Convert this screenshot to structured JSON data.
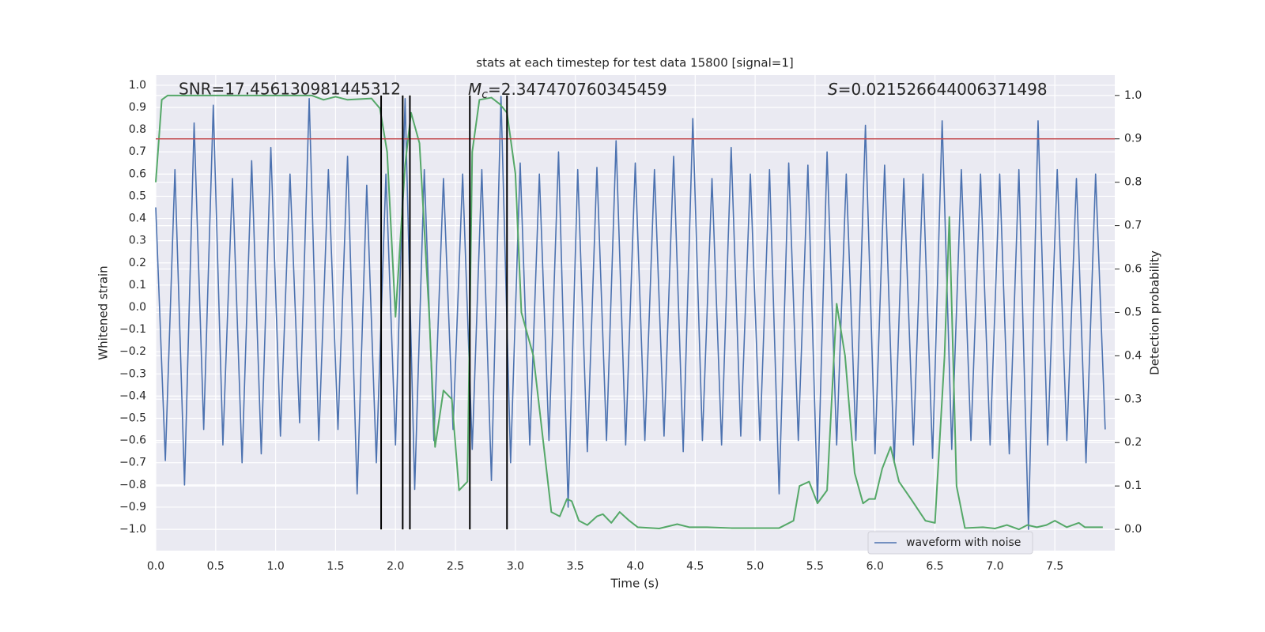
{
  "chart_data": {
    "type": "line",
    "title": "stats at each timestep for test data 15800 [signal=1]",
    "xlabel": "Time (s)",
    "ylabel": "Whitened strain",
    "y2label": "Detection probability",
    "xlim": [
      0,
      8.0
    ],
    "ylim": [
      -1.096,
      1.046
    ],
    "y2lim": [
      -0.049,
      1.047
    ],
    "xticks": [
      {
        "value": 0,
        "label": "0.0"
      },
      {
        "value": 0.5,
        "label": "0.5"
      },
      {
        "value": 1,
        "label": "1.0"
      },
      {
        "value": 1.5,
        "label": "1.5"
      },
      {
        "value": 2,
        "label": "2.0"
      },
      {
        "value": 2.5,
        "label": "2.5"
      },
      {
        "value": 3,
        "label": "3.0"
      },
      {
        "value": 3.5,
        "label": "3.5"
      },
      {
        "value": 4,
        "label": "4.0"
      },
      {
        "value": 4.5,
        "label": "4.5"
      },
      {
        "value": 5,
        "label": "5.0"
      },
      {
        "value": 5.5,
        "label": "5.5"
      },
      {
        "value": 6,
        "label": "6.0"
      },
      {
        "value": 6.5,
        "label": "6.5"
      },
      {
        "value": 7,
        "label": "7.0"
      },
      {
        "value": 7.5,
        "label": "7.5"
      }
    ],
    "yticks": [
      {
        "value": -1,
        "label": "−1.0"
      },
      {
        "value": -0.9,
        "label": "−0.9"
      },
      {
        "value": -0.8,
        "label": "−0.8"
      },
      {
        "value": -0.7,
        "label": "−0.7"
      },
      {
        "value": -0.6,
        "label": "−0.6"
      },
      {
        "value": -0.5,
        "label": "−0.5"
      },
      {
        "value": -0.4,
        "label": "−0.4"
      },
      {
        "value": -0.3,
        "label": "−0.3"
      },
      {
        "value": -0.2,
        "label": "−0.2"
      },
      {
        "value": -0.1,
        "label": "−0.1"
      },
      {
        "value": 0,
        "label": "0.0"
      },
      {
        "value": 0.1,
        "label": "0.1"
      },
      {
        "value": 0.2,
        "label": "0.2"
      },
      {
        "value": 0.3,
        "label": "0.3"
      },
      {
        "value": 0.4,
        "label": "0.4"
      },
      {
        "value": 0.5,
        "label": "0.5"
      },
      {
        "value": 0.6,
        "label": "0.6"
      },
      {
        "value": 0.7,
        "label": "0.7"
      },
      {
        "value": 0.8,
        "label": "0.8"
      },
      {
        "value": 0.9,
        "label": "0.9"
      },
      {
        "value": 1,
        "label": "1.0"
      }
    ],
    "y2ticks": [
      {
        "value": 0,
        "label": "0.0"
      },
      {
        "value": 0.1,
        "label": "0.1"
      },
      {
        "value": 0.2,
        "label": "0.2"
      },
      {
        "value": 0.3,
        "label": "0.3"
      },
      {
        "value": 0.4,
        "label": "0.4"
      },
      {
        "value": 0.5,
        "label": "0.5"
      },
      {
        "value": 0.6,
        "label": "0.6"
      },
      {
        "value": 0.7,
        "label": "0.7"
      },
      {
        "value": 0.8,
        "label": "0.8"
      },
      {
        "value": 0.9,
        "label": "0.9"
      },
      {
        "value": 1,
        "label": "1.0"
      }
    ],
    "grid": true,
    "legend": "lower right",
    "series": [
      {
        "name": "waveform with noise",
        "color": "#4c72b0",
        "x": [
          0,
          0.08,
          0.16,
          0.24,
          0.32,
          0.4,
          0.48,
          0.56,
          0.64,
          0.72,
          0.8,
          0.88,
          0.96,
          1.04,
          1.12,
          1.2,
          1.28,
          1.36,
          1.44,
          1.52,
          1.6,
          1.68,
          1.76,
          1.84,
          1.92,
          2,
          2.08,
          2.16,
          2.24,
          2.32,
          2.4,
          2.48,
          2.56,
          2.64,
          2.72,
          2.8,
          2.88,
          2.96,
          3.04,
          3.12,
          3.2,
          3.28,
          3.36,
          3.44,
          3.52,
          3.6,
          3.68,
          3.76,
          3.84,
          3.92,
          4,
          4.08,
          4.16,
          4.24,
          4.32,
          4.4,
          4.48,
          4.56,
          4.64,
          4.72,
          4.8,
          4.88,
          4.96,
          5.04,
          5.12,
          5.2,
          5.28,
          5.36,
          5.44,
          5.52,
          5.6,
          5.68,
          5.76,
          5.84,
          5.92,
          6,
          6.08,
          6.16,
          6.24,
          6.32,
          6.4,
          6.48,
          6.56,
          6.64,
          6.72,
          6.8,
          6.88,
          6.96,
          7.04,
          7.12,
          7.2,
          7.28,
          7.36,
          7.44,
          7.52,
          7.6,
          7.68,
          7.76,
          7.84,
          7.92
        ],
        "values": [
          0.45,
          -0.69,
          0.62,
          -0.8,
          0.83,
          -0.55,
          0.91,
          -0.62,
          0.58,
          -0.7,
          0.66,
          -0.66,
          0.72,
          -0.58,
          0.6,
          -0.52,
          0.94,
          -0.6,
          0.62,
          -0.55,
          0.68,
          -0.84,
          0.55,
          -0.7,
          0.6,
          -0.62,
          0.94,
          -0.82,
          0.62,
          -0.6,
          0.58,
          -0.55,
          0.6,
          -0.64,
          0.62,
          -0.78,
          0.95,
          -0.7,
          0.65,
          -0.62,
          0.6,
          -0.6,
          0.7,
          -0.9,
          0.62,
          -0.65,
          0.63,
          -0.6,
          0.75,
          -0.62,
          0.65,
          -0.6,
          0.62,
          -0.58,
          0.68,
          -0.65,
          0.85,
          -0.6,
          0.58,
          -0.62,
          0.72,
          -0.58,
          0.6,
          -0.6,
          0.62,
          -0.84,
          0.65,
          -0.6,
          0.64,
          -0.88,
          0.7,
          -0.62,
          0.6,
          -0.6,
          0.82,
          -0.66,
          0.64,
          -0.7,
          0.58,
          -0.62,
          0.6,
          -0.68,
          0.84,
          -0.64,
          0.62,
          -0.6,
          0.6,
          -0.62,
          0.6,
          -0.66,
          0.62,
          -1.0,
          0.84,
          -0.62,
          0.62,
          -0.6,
          0.58,
          -0.7,
          0.6,
          -0.55
        ]
      },
      {
        "color": "#55a868",
        "axis": "y2",
        "x": [
          0,
          0.05,
          0.1,
          0.6,
          1.3,
          1.4,
          1.5,
          1.6,
          1.8,
          1.87,
          1.93,
          2.0,
          2.08,
          2.13,
          2.2,
          2.28,
          2.33,
          2.4,
          2.47,
          2.53,
          2.6,
          2.64,
          2.7,
          2.8,
          2.87,
          2.93,
          3.0,
          3.05,
          3.15,
          3.25,
          3.3,
          3.37,
          3.43,
          3.47,
          3.53,
          3.6,
          3.68,
          3.73,
          3.8,
          3.87,
          3.95,
          4.02,
          4.2,
          4.35,
          4.45,
          4.6,
          4.8,
          5.0,
          5.2,
          5.32,
          5.37,
          5.45,
          5.52,
          5.6,
          5.68,
          5.75,
          5.83,
          5.9,
          5.95,
          6.0,
          6.06,
          6.13,
          6.2,
          6.3,
          6.42,
          6.5,
          6.58,
          6.62,
          6.68,
          6.75,
          6.9,
          7.0,
          7.1,
          7.2,
          7.27,
          7.35,
          7.43,
          7.5,
          7.6,
          7.7,
          7.75,
          7.9
        ],
        "values": [
          0.8,
          0.99,
          1.0,
          1.0,
          1.0,
          0.99,
          0.997,
          0.99,
          0.993,
          0.97,
          0.87,
          0.49,
          0.84,
          0.96,
          0.89,
          0.5,
          0.19,
          0.32,
          0.3,
          0.09,
          0.11,
          0.87,
          0.99,
          0.995,
          0.98,
          0.96,
          0.82,
          0.5,
          0.4,
          0.16,
          0.04,
          0.03,
          0.07,
          0.065,
          0.02,
          0.01,
          0.03,
          0.035,
          0.015,
          0.04,
          0.02,
          0.005,
          0.002,
          0.012,
          0.005,
          0.005,
          0.003,
          0.003,
          0.003,
          0.02,
          0.1,
          0.11,
          0.06,
          0.09,
          0.52,
          0.4,
          0.13,
          0.06,
          0.07,
          0.07,
          0.14,
          0.19,
          0.11,
          0.07,
          0.02,
          0.015,
          0.4,
          0.72,
          0.1,
          0.003,
          0.005,
          0.002,
          0.01,
          0.0,
          0.01,
          0.005,
          0.01,
          0.02,
          0.005,
          0.015,
          0.005,
          0.005
        ]
      }
    ],
    "vlines": {
      "color": "#000000",
      "x": [
        1.88,
        2.06,
        2.12,
        2.62,
        2.93
      ],
      "ymin": 0,
      "ymax": 1.0,
      "axis": "y2"
    },
    "hline": {
      "color": "#c44e52",
      "y": 0.9,
      "axis": "y2"
    },
    "annotations": [
      {
        "text": "SNR=17.456130981445312"
      },
      {
        "symbol": "M",
        "subscript": "c",
        "text": "=2.347470760345459"
      },
      {
        "symbol": "S",
        "text": "=0.021526644006371498"
      }
    ]
  }
}
